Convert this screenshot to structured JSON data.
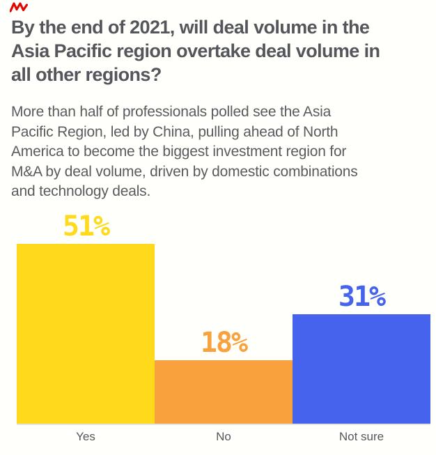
{
  "logo": {
    "color": "#e10600"
  },
  "header": {
    "title": "By the end of 2021, will deal volume in the Asia Pacific region overtake deal volume in all other regions?",
    "title_lines": [
      "By the end of 2021, will deal volume in the",
      "Asia Pacific region overtake deal volume in",
      "all other regions?"
    ],
    "subtitle": "More than half of professionals polled see the Asia Pacific Region, led by China, pulling ahead of North America to become the biggest investment region for M&A by deal volume, driven by domestic combinations and technology deals.",
    "subtitle_lines": [
      "More than half of professionals polled see the Asia",
      "Pacific Region, led by China, pulling ahead of North",
      "America to become the biggest investment region for",
      "M&A by deal volume, driven by domestic combinations",
      "and technology deals."
    ]
  },
  "chart_data": {
    "type": "bar",
    "title": "By the end of 2021, will deal volume in the Asia Pacific region overtake deal volume in all other regions?",
    "categories": [
      "Yes",
      "No",
      "Not sure"
    ],
    "values": [
      51,
      18,
      31
    ],
    "value_labels": [
      "51%",
      "18%",
      "31%"
    ],
    "colors": [
      "#ffd91c",
      "#f9a13c",
      "#4663ee"
    ],
    "ylim": [
      0,
      51
    ],
    "grid": false,
    "legend": "none",
    "baseline_color": "#e5e2d9",
    "label_position": "above-bars"
  },
  "text_colors": {
    "title": "#55565b",
    "subtitle": "#5a5b5f",
    "category_labels": "#55565b"
  }
}
